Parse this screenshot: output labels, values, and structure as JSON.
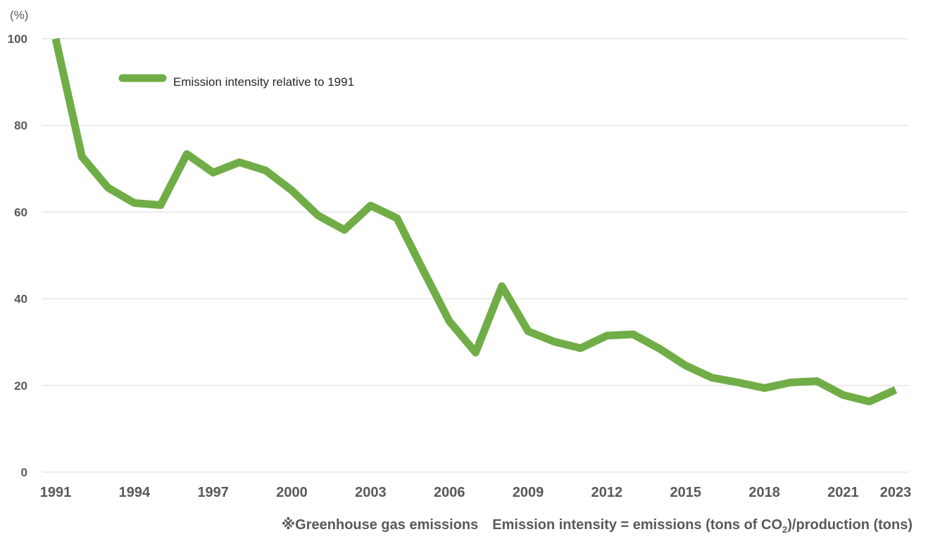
{
  "chart_data": {
    "type": "line",
    "unit_label": "(%)",
    "ylim": [
      0,
      100
    ],
    "yticks": [
      0,
      20,
      40,
      60,
      80,
      100
    ],
    "xlim": [
      1991,
      2023
    ],
    "xticks": [
      1991,
      1994,
      1997,
      2000,
      2003,
      2006,
      2009,
      2012,
      2015,
      2018,
      2021,
      2023
    ],
    "grid": true,
    "legend_position": "top-left",
    "series": [
      {
        "name": "Emission intensity relative to 1991",
        "color": "#70ad47",
        "x": [
          1991,
          1992,
          1993,
          1994,
          1995,
          1996,
          1997,
          1998,
          1999,
          2000,
          2001,
          2002,
          2003,
          2004,
          2005,
          2006,
          2007,
          2008,
          2009,
          2010,
          2011,
          2012,
          2013,
          2014,
          2015,
          2016,
          2017,
          2018,
          2019,
          2020,
          2021,
          2022,
          2023
        ],
        "y": [
          100,
          72.8,
          65.6,
          62.1,
          61.6,
          73.4,
          69.1,
          71.5,
          69.6,
          65,
          59.2,
          55.9,
          61.5,
          58.6,
          46.6,
          34.8,
          27.6,
          42.9,
          32.5,
          30.1,
          28.6,
          31.5,
          31.8,
          28.5,
          24.6,
          21.8,
          20.7,
          19.4,
          20.7,
          21,
          17.8,
          16.3,
          19
        ]
      }
    ]
  },
  "footnote": {
    "prefix": "※Greenhouse gas emissions　Emission intensity = emissions (tons of CO",
    "subscript": "2",
    "suffix": ")/production (tons)"
  }
}
